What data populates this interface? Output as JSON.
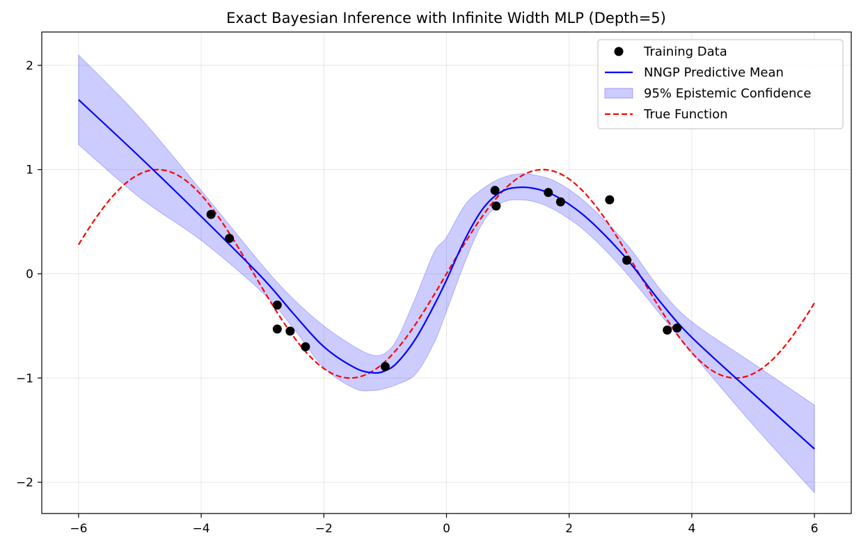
{
  "chart_data": {
    "type": "line",
    "title": "Exact Bayesian Inference with Infinite Width MLP (Depth=5)",
    "xlabel": "",
    "ylabel": "",
    "xlim": [
      -6.6,
      6.6
    ],
    "ylim": [
      -2.3,
      2.32
    ],
    "xticks": [
      -6,
      -4,
      -2,
      0,
      2,
      4,
      6
    ],
    "yticks": [
      -2,
      -1,
      0,
      1,
      2
    ],
    "xtick_labels": [
      "−6",
      "−4",
      "−2",
      "0",
      "2",
      "4",
      "6"
    ],
    "ytick_labels": [
      "−2",
      "−1",
      "0",
      "1",
      "2"
    ],
    "grid": true,
    "legend_position": "top-right",
    "colors": {
      "training_data": "#000000",
      "predictive_mean": "#0000ff",
      "confidence_band": "#0000ff",
      "true_function": "#ff0000"
    },
    "legend": [
      {
        "label": "Training Data",
        "kind": "scatter"
      },
      {
        "label": "NNGP Predictive Mean",
        "kind": "line"
      },
      {
        "label": "95% Epistemic Confidence",
        "kind": "band"
      },
      {
        "label": "True Function",
        "kind": "dashed"
      }
    ],
    "training_data": {
      "x": [
        -3.84,
        -3.54,
        -2.76,
        -2.76,
        -2.55,
        -2.3,
        -1.0,
        0.79,
        0.81,
        1.66,
        1.86,
        2.66,
        2.94,
        3.6,
        3.76
      ],
      "y": [
        0.57,
        0.34,
        -0.3,
        -0.53,
        -0.55,
        -0.7,
        -0.89,
        0.8,
        0.65,
        0.78,
        0.69,
        0.71,
        0.13,
        -0.54,
        -0.52
      ]
    },
    "predictive_mean": {
      "x": [
        -6,
        -5,
        -4,
        -3,
        -2.5,
        -2,
        -1.5,
        -1.2,
        -1.0,
        -0.8,
        -0.5,
        -0.2,
        0,
        0.3,
        0.6,
        0.9,
        1.2,
        1.5,
        1.8,
        2.2,
        2.6,
        3.0,
        3.5,
        4,
        5,
        6
      ],
      "y": [
        1.67,
        1.12,
        0.55,
        -0.04,
        -0.38,
        -0.7,
        -0.9,
        -0.95,
        -0.93,
        -0.85,
        -0.62,
        -0.3,
        -0.06,
        0.33,
        0.63,
        0.79,
        0.83,
        0.81,
        0.74,
        0.58,
        0.36,
        0.1,
        -0.28,
        -0.61,
        -1.15,
        -1.68
      ]
    },
    "confidence_band": {
      "x": [
        -6,
        -5,
        -4,
        -3,
        -2.5,
        -2,
        -1.5,
        -1.2,
        -1.0,
        -0.8,
        -0.5,
        -0.2,
        0,
        0.3,
        0.6,
        0.9,
        1.2,
        1.5,
        1.8,
        2.2,
        2.6,
        3.0,
        3.5,
        4,
        5,
        6
      ],
      "lower": [
        1.24,
        0.73,
        0.32,
        -0.18,
        -0.52,
        -0.9,
        -1.1,
        -1.12,
        -1.1,
        -1.06,
        -0.96,
        -0.66,
        -0.36,
        0.11,
        0.5,
        0.68,
        0.71,
        0.68,
        0.6,
        0.44,
        0.22,
        -0.04,
        -0.4,
        -0.76,
        -1.45,
        -2.1
      ],
      "upper": [
        2.1,
        1.5,
        0.8,
        0.08,
        -0.24,
        -0.5,
        -0.7,
        -0.78,
        -0.76,
        -0.62,
        -0.22,
        0.21,
        0.35,
        0.66,
        0.82,
        0.92,
        0.96,
        0.94,
        0.88,
        0.72,
        0.5,
        0.24,
        -0.16,
        -0.46,
        -0.86,
        -1.26
      ]
    },
    "true_function": {
      "formula": "sin(x)",
      "x_range": [
        -6,
        6
      ]
    }
  }
}
